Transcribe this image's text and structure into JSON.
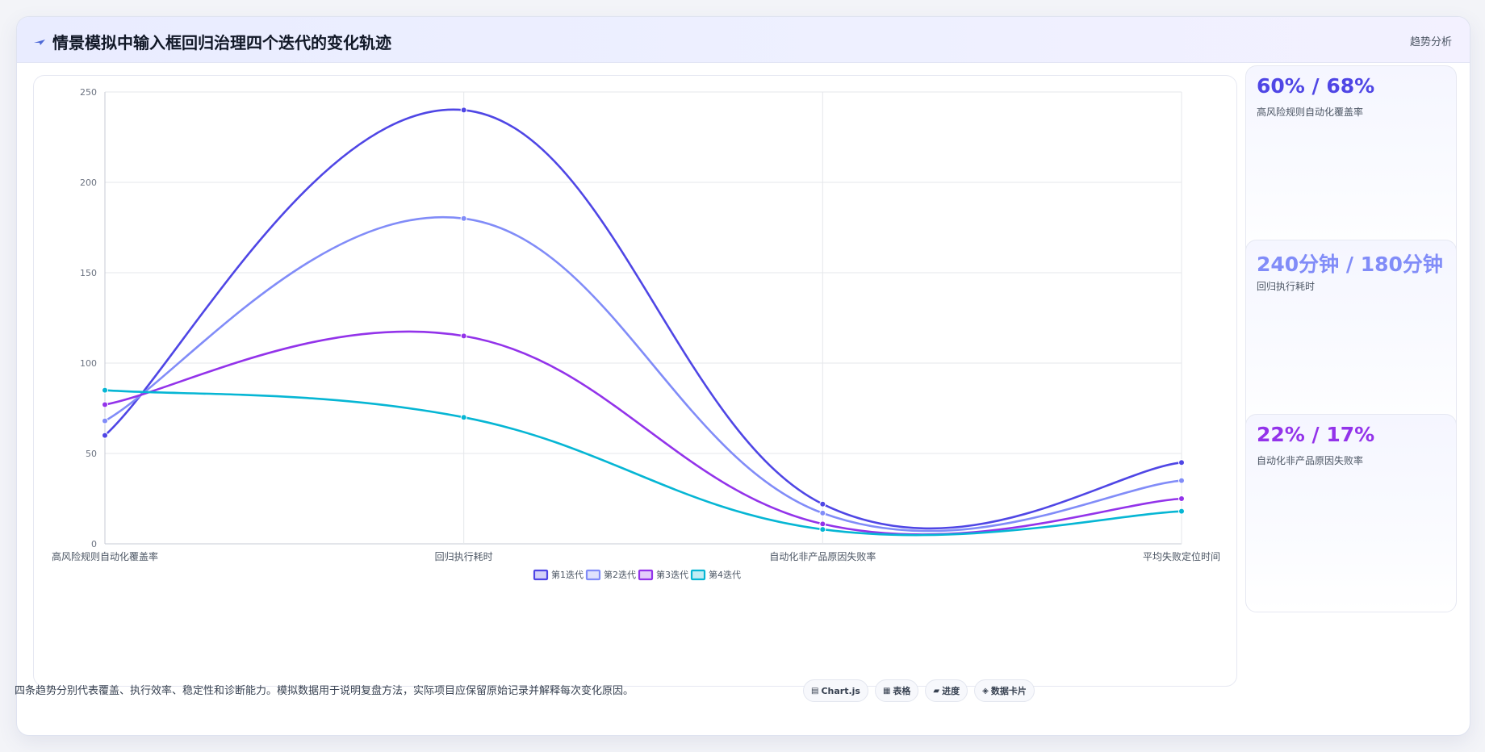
{
  "header": {
    "title": "情景模拟中输入框回归治理四个迭代的变化轨迹",
    "tag": "趋势分析"
  },
  "chart_data": {
    "type": "line",
    "categories": [
      "高风险规则自动化覆盖率",
      "回归执行耗时",
      "自动化非产品原因失败率",
      "平均失败定位时间"
    ],
    "series": [
      {
        "name": "第1迭代",
        "values": [
          60,
          240,
          22,
          45
        ],
        "color": "#4f46e5"
      },
      {
        "name": "第2迭代",
        "values": [
          68,
          180,
          17,
          35
        ],
        "color": "#818cf8"
      },
      {
        "name": "第3迭代",
        "values": [
          77,
          115,
          11,
          25
        ],
        "color": "#9333ea"
      },
      {
        "name": "第4迭代",
        "values": [
          85,
          70,
          8,
          18
        ],
        "color": "#06b6d4"
      }
    ],
    "ylim": [
      0,
      250
    ],
    "yticks": [
      0,
      50,
      100,
      150,
      200,
      250
    ],
    "grid": true,
    "legend": "bottom"
  },
  "stats": [
    {
      "value": "60% / 68%",
      "label": "高风险规则自动化覆盖率",
      "color": "#4f46e5"
    },
    {
      "value": "240分钟 / 180分钟",
      "label": "回归执行耗时",
      "color": "#818cf8"
    },
    {
      "value": "22% / 17%",
      "label": "自动化非产品原因失败率",
      "color": "#9333ea"
    }
  ],
  "footer": {
    "note": "四条趋势分别代表覆盖、执行效率、稳定性和诊断能力。模拟数据用于说明复盘方法，实际项目应保留原始记录并解释每次变化原因。",
    "chips": [
      {
        "icon": "▤",
        "label": "Chart.js"
      },
      {
        "icon": "▦",
        "label": "表格"
      },
      {
        "icon": "▰",
        "label": "进度"
      },
      {
        "icon": "◈",
        "label": "数据卡片"
      }
    ]
  }
}
